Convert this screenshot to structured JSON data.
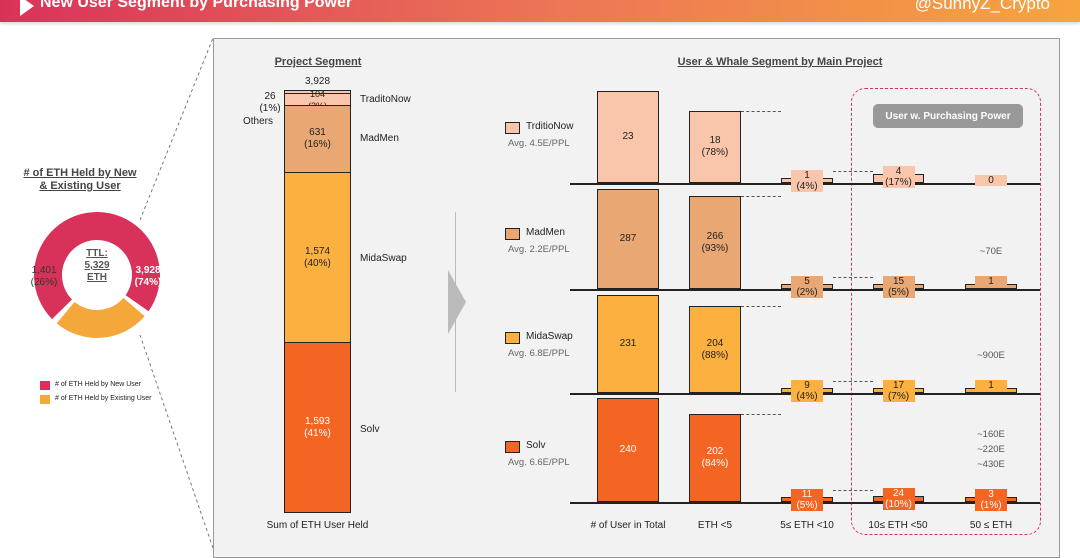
{
  "header": {
    "title": "New User Segment by Purchasing Power",
    "handle": "@SunnyZ_Crypto"
  },
  "colors": {
    "new_user": "#d9325a",
    "existing_user": "#f5a83a",
    "TraditoNow": "#f9c6ab",
    "MadMen": "#e9a873",
    "MidaSwap": "#fbb040",
    "Solv": "#f26522",
    "highlight_box": "#d9325a"
  },
  "chart_data": [
    {
      "type": "pie",
      "title": "# of ETH Held by New & Existing User",
      "center_label": [
        "TTL:",
        "5,329",
        "ETH"
      ],
      "slices": [
        {
          "name": "# of ETH Held by New User",
          "value": 3928,
          "label": "3,928",
          "pct": "(74%)"
        },
        {
          "name": "# of ETH Held by Existing User",
          "value": 1401,
          "label": "1,401",
          "pct": "(26%)"
        }
      ],
      "legend": "bottom"
    },
    {
      "type": "bar",
      "stacked": true,
      "title": "Project Segment",
      "xlabel": "Sum of ETH User Held",
      "total": "3,928",
      "segments": [
        {
          "name": "Others",
          "value": 26,
          "label": "26",
          "pct": "(1%)"
        },
        {
          "name": "TraditoNow",
          "value": 104,
          "label": "104",
          "pct": "(3%)"
        },
        {
          "name": "MadMen",
          "value": 631,
          "label": "631",
          "pct": "(16%)"
        },
        {
          "name": "MidaSwap",
          "value": 1574,
          "label": "1,574",
          "pct": "(40%)"
        },
        {
          "name": "Solv",
          "value": 1593,
          "label": "1,593",
          "pct": "(41%)"
        }
      ]
    },
    {
      "type": "bar",
      "title": "User & Whale Segment by Main Project",
      "highlight_label": "User w. Purchasing Power",
      "categories": [
        "# of User in Total",
        "ETH <5",
        "5≤ ETH  <10",
        "10≤ ETH  <50",
        "50 ≤ ETH"
      ],
      "series": [
        {
          "name": "TrditioNow",
          "avg": "Avg. 4.5E/PPL",
          "values": [
            23,
            18,
            1,
            4,
            0
          ],
          "pcts": [
            "",
            "(78%)",
            "(4%)",
            "(17%)",
            ""
          ],
          "whale_notes": []
        },
        {
          "name": "MadMen",
          "avg": "Avg. 2.2E/PPL",
          "values": [
            287,
            266,
            5,
            15,
            1
          ],
          "pcts": [
            "",
            "(93%)",
            "(2%)",
            "(5%)",
            ""
          ],
          "whale_notes": [
            "~70E"
          ]
        },
        {
          "name": "MidaSwap",
          "avg": "Avg. 6.8E/PPL",
          "values": [
            231,
            204,
            9,
            17,
            1
          ],
          "pcts": [
            "",
            "(88%)",
            "(4%)",
            "(7%)",
            ""
          ],
          "whale_notes": [
            "~900E"
          ]
        },
        {
          "name": "Solv",
          "avg": "Avg. 6.6E/PPL",
          "values": [
            240,
            202,
            11,
            24,
            3
          ],
          "pcts": [
            "",
            "(84%)",
            "(5%)",
            "(10%)",
            "(1%)"
          ],
          "whale_notes": [
            "~160E",
            "~220E",
            "~430E"
          ]
        }
      ]
    }
  ]
}
